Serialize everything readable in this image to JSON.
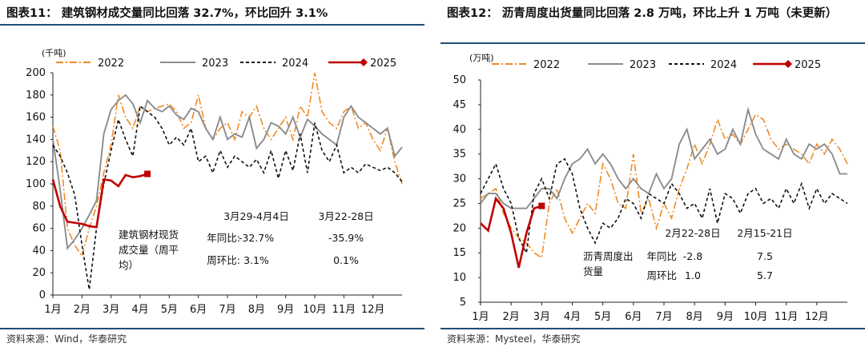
{
  "chart_data": [
    {
      "type": "line",
      "title": "图表11：  建筑钢材成交量同比回落 32.7%，环比回升 3.1%",
      "ylabel": "(千吨)",
      "ylim": [
        0,
        200
      ],
      "yticks": [
        "0",
        "20",
        "40",
        "60",
        "80",
        "100",
        "120",
        "140",
        "160",
        "180",
        "200"
      ],
      "categories": [
        "1月",
        "2月",
        "3月",
        "4月",
        "5月",
        "6月",
        "7月",
        "8月",
        "9月",
        "10月",
        "11月",
        "12月"
      ],
      "series": [
        {
          "name": "2022",
          "color": "#f08a24",
          "style": "dashdot",
          "x": [
            1,
            1.25,
            1.5,
            1.75,
            2,
            2.25,
            2.5,
            2.75,
            3,
            3.25,
            3.5,
            3.75,
            4,
            4.25,
            4.5,
            4.75,
            5,
            5.25,
            5.5,
            5.75,
            6,
            6.25,
            6.5,
            6.75,
            7,
            7.25,
            7.5,
            7.75,
            8,
            8.25,
            8.5,
            8.75,
            9,
            9.25,
            9.5,
            9.75,
            10,
            10.25,
            10.5,
            10.75,
            11,
            11.25,
            11.5,
            11.75,
            12,
            12.25,
            12.5,
            12.75,
            13
          ],
          "values": [
            152,
            130,
            60,
            45,
            35,
            60,
            80,
            110,
            135,
            180,
            160,
            150,
            170,
            165,
            168,
            170,
            172,
            165,
            150,
            155,
            180,
            150,
            140,
            150,
            155,
            140,
            165,
            160,
            170,
            150,
            140,
            150,
            160,
            140,
            170,
            160,
            200,
            165,
            155,
            150,
            165,
            170,
            150,
            155,
            140,
            130,
            150,
            120,
            100
          ]
        },
        {
          "name": "2023",
          "color": "#8c8c8c",
          "style": "solid",
          "x": [
            1,
            1.25,
            1.5,
            1.75,
            2,
            2.25,
            2.5,
            2.75,
            3,
            3.25,
            3.5,
            3.75,
            4,
            4.25,
            4.5,
            4.75,
            5,
            5.25,
            5.5,
            5.75,
            6,
            6.25,
            6.5,
            6.75,
            7,
            7.25,
            7.5,
            7.75,
            8,
            8.25,
            8.5,
            8.75,
            9,
            9.25,
            9.5,
            9.75,
            10,
            10.25,
            10.5,
            10.75,
            11,
            11.25,
            11.5,
            11.75,
            12,
            12.25,
            12.5,
            12.75,
            13
          ],
          "values": [
            140,
            95,
            42,
            50,
            60,
            72,
            85,
            145,
            167,
            175,
            180,
            172,
            155,
            175,
            168,
            165,
            170,
            162,
            158,
            168,
            165,
            150,
            140,
            160,
            140,
            145,
            142,
            160,
            132,
            140,
            155,
            152,
            145,
            160,
            142,
            158,
            152,
            145,
            140,
            135,
            160,
            170,
            160,
            155,
            150,
            145,
            150,
            125,
            133
          ]
        },
        {
          "name": "2024",
          "color": "#111111",
          "style": "dashed",
          "x": [
            1,
            1.25,
            1.5,
            1.75,
            2,
            2.25,
            2.5,
            2.75,
            3,
            3.25,
            3.5,
            3.75,
            4,
            4.25,
            4.5,
            4.75,
            5,
            5.25,
            5.5,
            5.75,
            6,
            6.25,
            6.5,
            6.75,
            7,
            7.25,
            7.5,
            7.75,
            8,
            8.25,
            8.5,
            8.75,
            9,
            9.25,
            9.5,
            9.75,
            10,
            10.25,
            10.5,
            10.75,
            11,
            11.25,
            11.5,
            11.75,
            12,
            12.25,
            12.5,
            12.75,
            13
          ],
          "values": [
            135,
            125,
            110,
            90,
            45,
            5,
            60,
            100,
            130,
            158,
            140,
            125,
            170,
            165,
            160,
            150,
            135,
            142,
            135,
            150,
            120,
            125,
            110,
            130,
            115,
            125,
            120,
            115,
            122,
            110,
            130,
            105,
            130,
            112,
            145,
            110,
            155,
            130,
            120,
            135,
            110,
            115,
            110,
            118,
            115,
            112,
            115,
            110,
            102
          ]
        },
        {
          "name": "2025",
          "color": "#c00000",
          "style": "solid",
          "x": [
            1,
            1.25,
            1.5,
            1.75,
            2,
            2.25,
            2.5,
            2.75,
            3,
            3.25,
            3.5,
            3.75,
            4,
            4.25
          ],
          "values": [
            104,
            80,
            66,
            65,
            64,
            62,
            61,
            104,
            103,
            98,
            108,
            106,
            107,
            109
          ]
        }
      ],
      "annotation": {
        "label": "建筑钢材现货成交量（周平均）",
        "period_current": "3月29-4月4日",
        "period_prev": "3月22-28日",
        "rows": [
          {
            "name": "年同比:",
            "current": "-32.7%",
            "prev": "-35.9%"
          },
          {
            "name": "周环比:",
            "current": "3.1%",
            "prev": "0.1%"
          }
        ]
      },
      "source": "资料来源：Wind，华泰研究"
    },
    {
      "type": "line",
      "title": "图表12：  沥青周度出货量同比回落 2.8 万吨，环比上升 1 万吨（未更新）",
      "ylabel": "(万吨)",
      "ylim": [
        5,
        50
      ],
      "yticks": [
        "5",
        "10",
        "15",
        "20",
        "25",
        "30",
        "35",
        "40",
        "45",
        "50"
      ],
      "categories": [
        "1月",
        "2月",
        "3月",
        "4月",
        "5月",
        "6月",
        "7月",
        "8月",
        "9月",
        "10月",
        "11月",
        "12月"
      ],
      "series": [
        {
          "name": "2022",
          "color": "#f08a24",
          "style": "dashdot",
          "x": [
            1,
            1.25,
            1.5,
            1.75,
            2,
            2.25,
            2.5,
            2.75,
            3,
            3.25,
            3.5,
            3.75,
            4,
            4.25,
            4.5,
            4.75,
            5,
            5.25,
            5.5,
            5.75,
            6,
            6.25,
            6.5,
            6.75,
            7,
            7.25,
            7.5,
            7.75,
            8,
            8.25,
            8.5,
            8.75,
            9,
            9.25,
            9.5,
            9.75,
            10,
            10.25,
            10.5,
            10.75,
            11,
            11.25,
            11.5,
            11.75,
            12,
            12.25,
            12.5,
            12.75,
            13
          ],
          "values": [
            26,
            27,
            28,
            23,
            20,
            18,
            17,
            15,
            14,
            25,
            28,
            22,
            19,
            22,
            25,
            23,
            33,
            30,
            25,
            24,
            35,
            23,
            26,
            20,
            25,
            22,
            28,
            32,
            37,
            33,
            37,
            42,
            38,
            39,
            37,
            40,
            43,
            42,
            38,
            36,
            37,
            36,
            35,
            33,
            37,
            35,
            38,
            36,
            33
          ]
        },
        {
          "name": "2023",
          "color": "#8c8c8c",
          "style": "solid",
          "x": [
            1,
            1.25,
            1.5,
            1.75,
            2,
            2.25,
            2.5,
            2.75,
            3,
            3.25,
            3.5,
            3.75,
            4,
            4.25,
            4.5,
            4.75,
            5,
            5.25,
            5.5,
            5.75,
            6,
            6.25,
            6.5,
            6.75,
            7,
            7.25,
            7.5,
            7.75,
            8,
            8.25,
            8.5,
            8.75,
            9,
            9.25,
            9.5,
            9.75,
            10,
            10.25,
            10.5,
            10.75,
            11,
            11.25,
            11.5,
            11.75,
            12,
            12.25,
            12.5,
            12.75,
            13
          ],
          "values": [
            25,
            27,
            27,
            25,
            24,
            24,
            24,
            26,
            28,
            28,
            26,
            30,
            33,
            34,
            36,
            33,
            35,
            33,
            30,
            28,
            30,
            28,
            27,
            31,
            28,
            30,
            37,
            40,
            34,
            36,
            38,
            35,
            36,
            40,
            37,
            44,
            39,
            36,
            35,
            34,
            38,
            35,
            34,
            37,
            36,
            37,
            35,
            31,
            31
          ]
        },
        {
          "name": "2024",
          "color": "#111111",
          "style": "dashed",
          "x": [
            1,
            1.25,
            1.5,
            1.75,
            2,
            2.25,
            2.5,
            2.75,
            3,
            3.25,
            3.5,
            3.75,
            4,
            4.25,
            4.5,
            4.75,
            5,
            5.25,
            5.5,
            5.75,
            6,
            6.25,
            6.5,
            6.75,
            7,
            7.25,
            7.5,
            7.75,
            8,
            8.25,
            8.5,
            8.75,
            9,
            9.25,
            9.5,
            9.75,
            10,
            10.25,
            10.5,
            10.75,
            11,
            11.25,
            11.5,
            11.75,
            12,
            12.25,
            12.5,
            12.75,
            13
          ],
          "values": [
            27,
            30,
            33,
            28,
            25,
            18,
            15,
            27,
            30,
            26,
            33,
            34,
            31,
            24,
            20,
            17,
            21,
            20,
            22,
            26,
            25,
            22,
            27,
            26,
            25,
            29,
            27,
            24,
            25,
            22,
            28,
            21,
            27,
            26,
            23,
            27,
            28,
            25,
            26,
            24,
            28,
            25,
            29,
            24,
            28,
            25,
            27,
            26,
            25
          ]
        },
        {
          "name": "2025",
          "color": "#c00000",
          "style": "solid",
          "x": [
            1,
            1.25,
            1.5,
            1.75,
            2,
            2.25,
            2.5,
            2.75,
            3
          ],
          "values": [
            21,
            19.5,
            26,
            24,
            19,
            12,
            19,
            24,
            24.5
          ]
        }
      ],
      "annotation": {
        "label": "沥青周度出货量",
        "period_current": "2月22-28日",
        "period_prev": "2月15-21日",
        "rows": [
          {
            "name": "年同比",
            "current": "-2.8",
            "prev": "7.5"
          },
          {
            "name": "周环比",
            "current": "1.0",
            "prev": "5.7"
          }
        ]
      },
      "source": "资料来源：Mysteel，华泰研究"
    }
  ]
}
